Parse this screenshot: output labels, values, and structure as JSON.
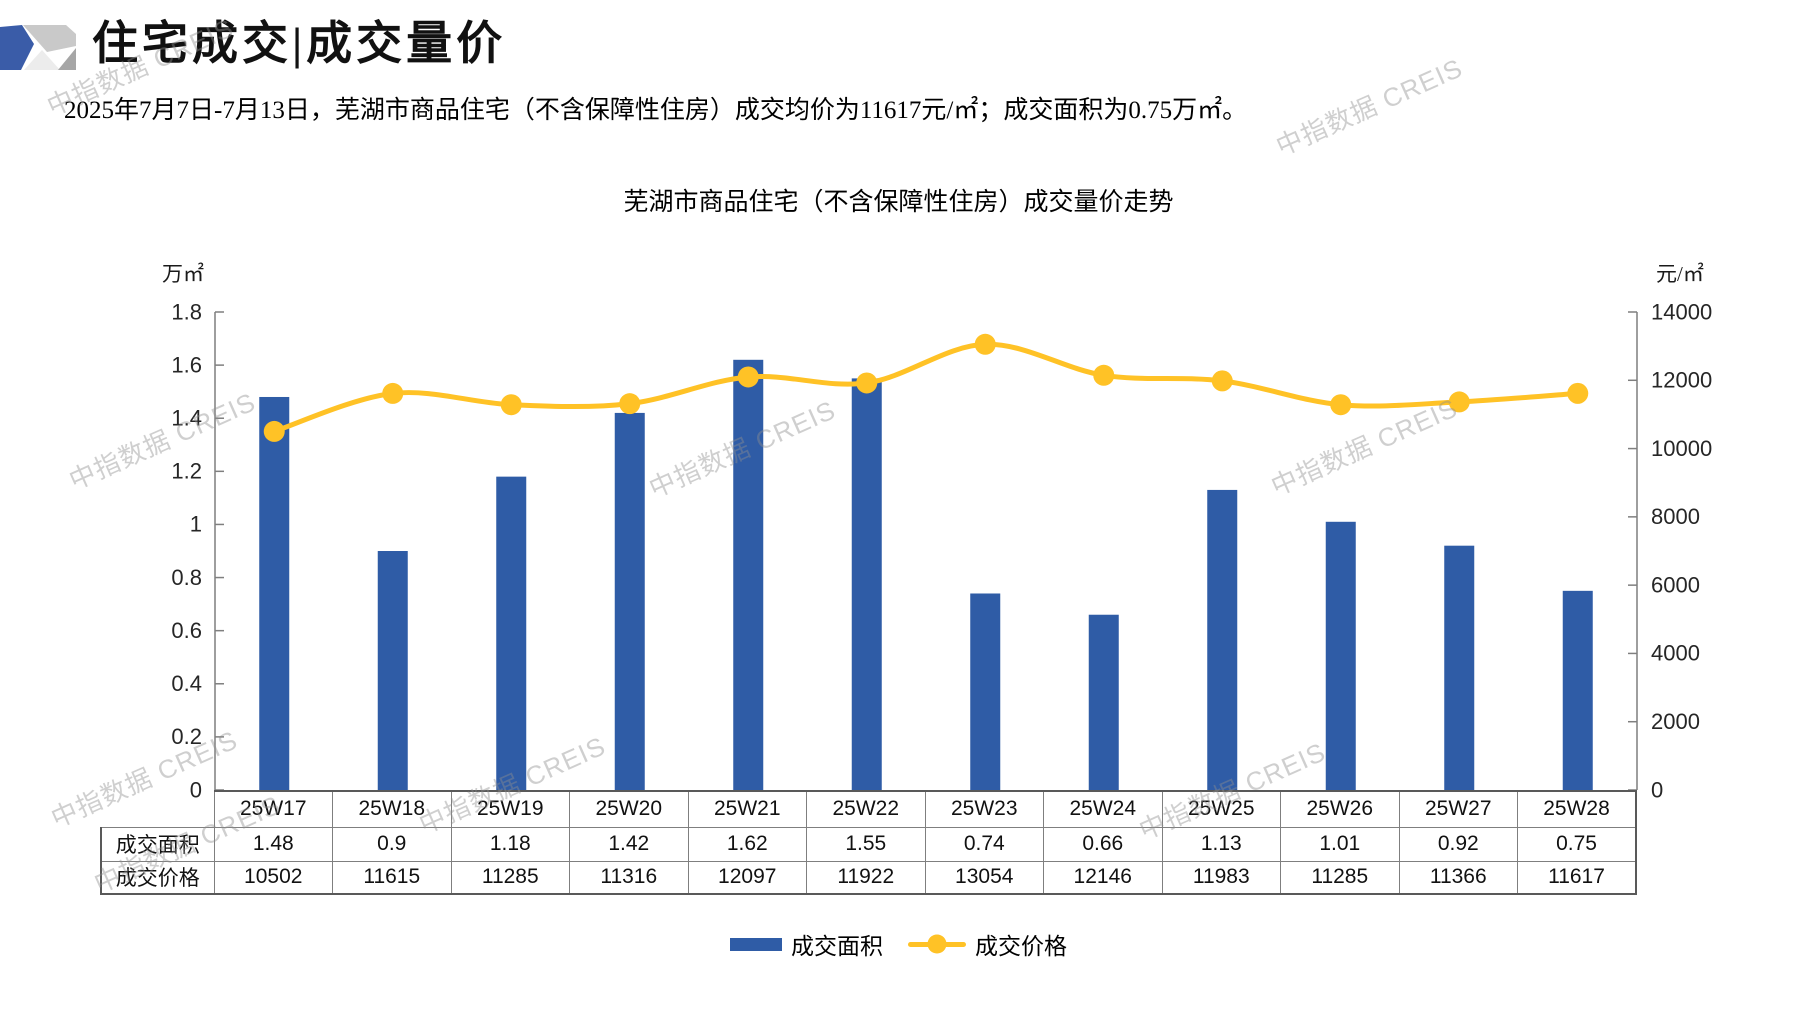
{
  "header": {
    "title": "住宅成交|成交量价"
  },
  "intro": "2025年7月7日-7月13日，芜湖市商品住宅（不含保障性住房）成交均价为11617元/㎡；成交面积为0.75万㎡。",
  "watermark": {
    "text": "中指数据 CREIS"
  },
  "chart_data": {
    "type": "bar+line",
    "title": "芜湖市商品住宅（不含保障性住房）成交量价走势",
    "categories": [
      "25W17",
      "25W18",
      "25W19",
      "25W20",
      "25W21",
      "25W22",
      "25W23",
      "25W24",
      "25W25",
      "25W26",
      "25W27",
      "25W28"
    ],
    "series": [
      {
        "name": "成交面积",
        "type": "bar",
        "axis": "left",
        "unit": "万㎡",
        "color": "#2f5ca6",
        "values": [
          1.48,
          0.9,
          1.18,
          1.42,
          1.62,
          1.55,
          0.74,
          0.66,
          1.13,
          1.01,
          0.92,
          0.75
        ]
      },
      {
        "name": "成交价格",
        "type": "line",
        "axis": "right",
        "unit": "元/㎡",
        "color": "#ffc226",
        "values": [
          10502,
          11615,
          11285,
          11316,
          12097,
          11922,
          13054,
          12146,
          11983,
          11285,
          11366,
          11617
        ]
      }
    ],
    "left_axis": {
      "label": "万㎡",
      "min": 0,
      "max": 1.8,
      "step": 0.2
    },
    "right_axis": {
      "label": "元/㎡",
      "min": 0,
      "max": 14000,
      "step": 2000
    },
    "grid": false,
    "legend_position": "bottom",
    "table_row_headers": [
      "成交面积",
      "成交价格"
    ]
  },
  "legend": {
    "items": [
      {
        "label": "成交面积",
        "color": "#2f5ca6",
        "type": "bar"
      },
      {
        "label": "成交价格",
        "color": "#ffc226",
        "type": "line"
      }
    ]
  },
  "logo_colors": {
    "blue": "#3a5ca8",
    "gray1": "#c9c9c9",
    "gray2": "#ececec",
    "gray3": "#a6a6a6"
  }
}
